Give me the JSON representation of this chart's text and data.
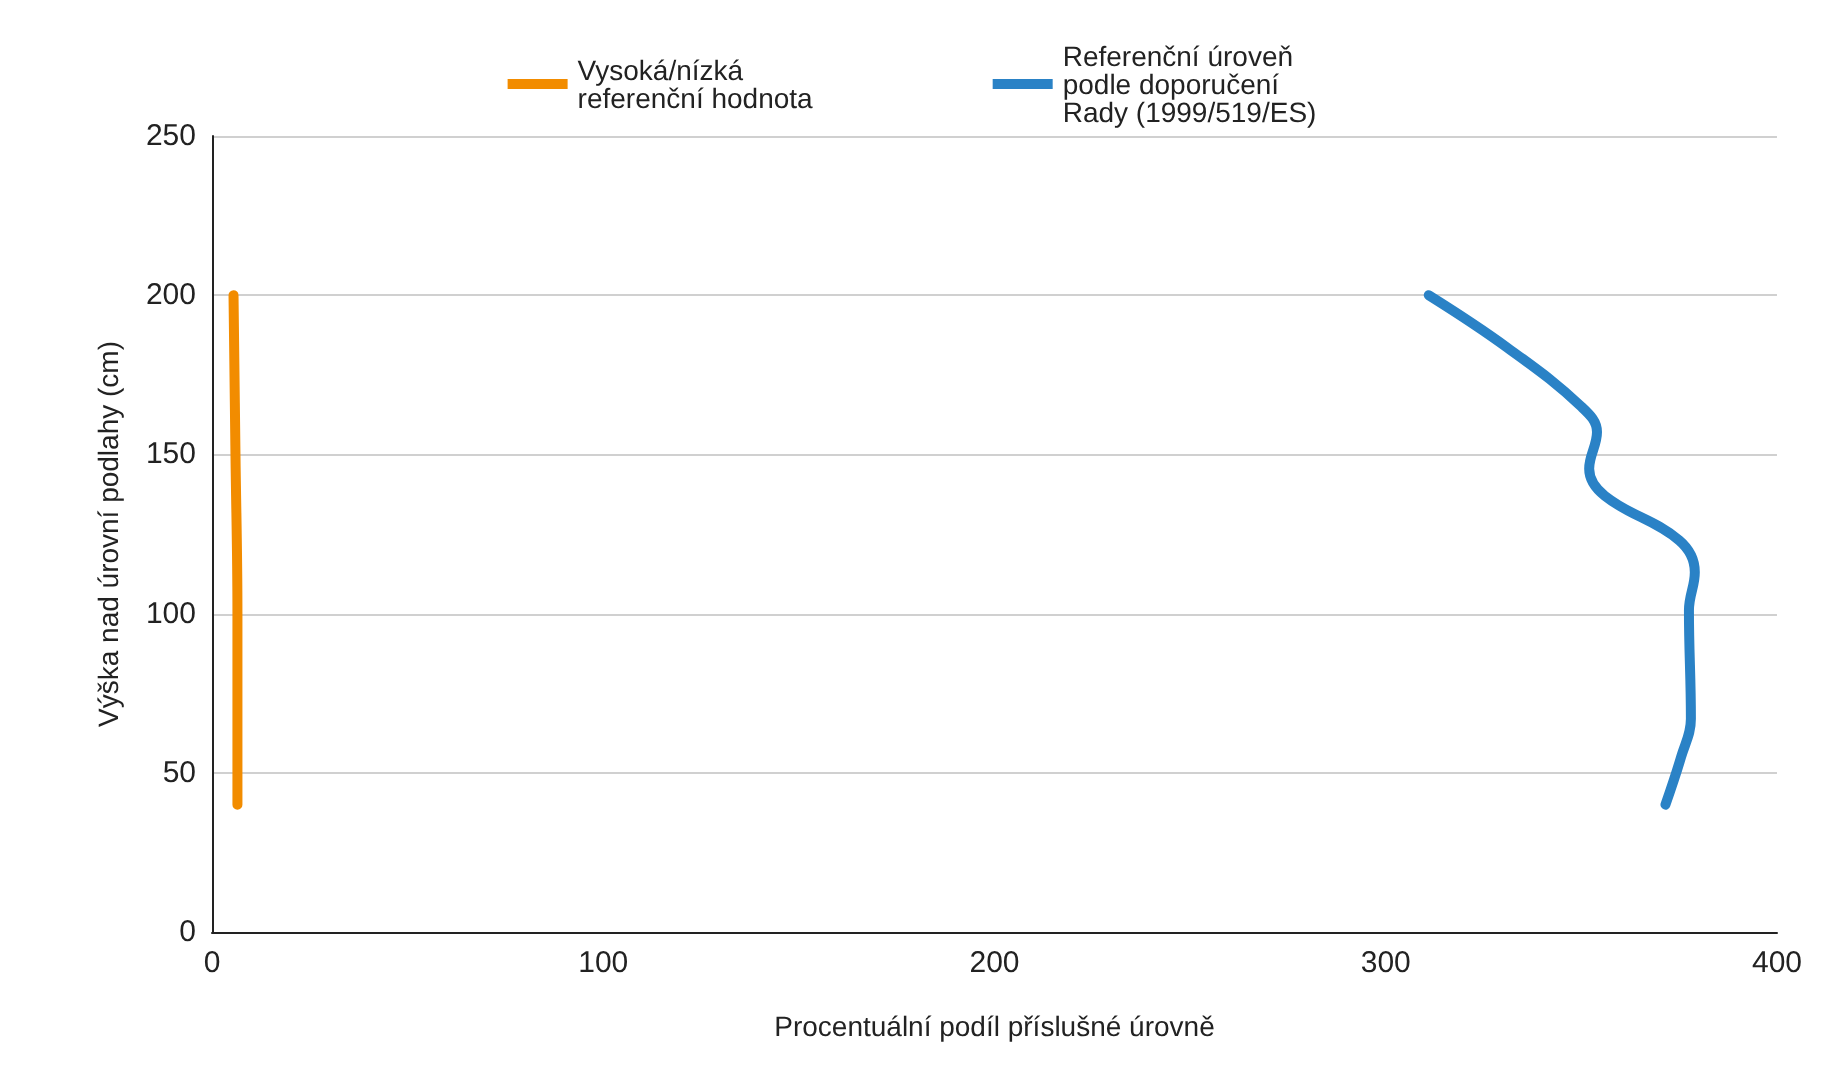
{
  "chart_data": {
    "type": "line",
    "xlabel": "Procentuální podíl příslušné úrovně",
    "ylabel": "Výška nad úrovní podlahy (cm)",
    "xlim": [
      0,
      400
    ],
    "xticks": [
      0,
      100,
      200,
      300,
      400
    ],
    "ylim": [
      0,
      250
    ],
    "yticks": [
      0,
      50,
      100,
      150,
      200,
      250
    ],
    "grid": "y",
    "legend": "top",
    "marker": "none",
    "line_style": "solid",
    "series": [
      {
        "name": "Vysoká/nízká referenční hodnota",
        "color": "#f28c00",
        "x": [
          5.5,
          6,
          6.5,
          6.5
        ],
        "values": [
          200,
          150,
          100,
          40
        ]
      },
      {
        "name": "Referenční úroveň podle doporučení Rady (1999/519/ES)",
        "color": "#2a82c6",
        "x": [
          311,
          331,
          350,
          354,
          352,
          356,
          375,
          379,
          377.5,
          378,
          375.5,
          371.5
        ],
        "values": [
          200,
          183.6,
          165,
          157,
          145.5,
          137,
          123,
          113,
          101,
          67,
          55,
          40
        ]
      }
    ]
  }
}
